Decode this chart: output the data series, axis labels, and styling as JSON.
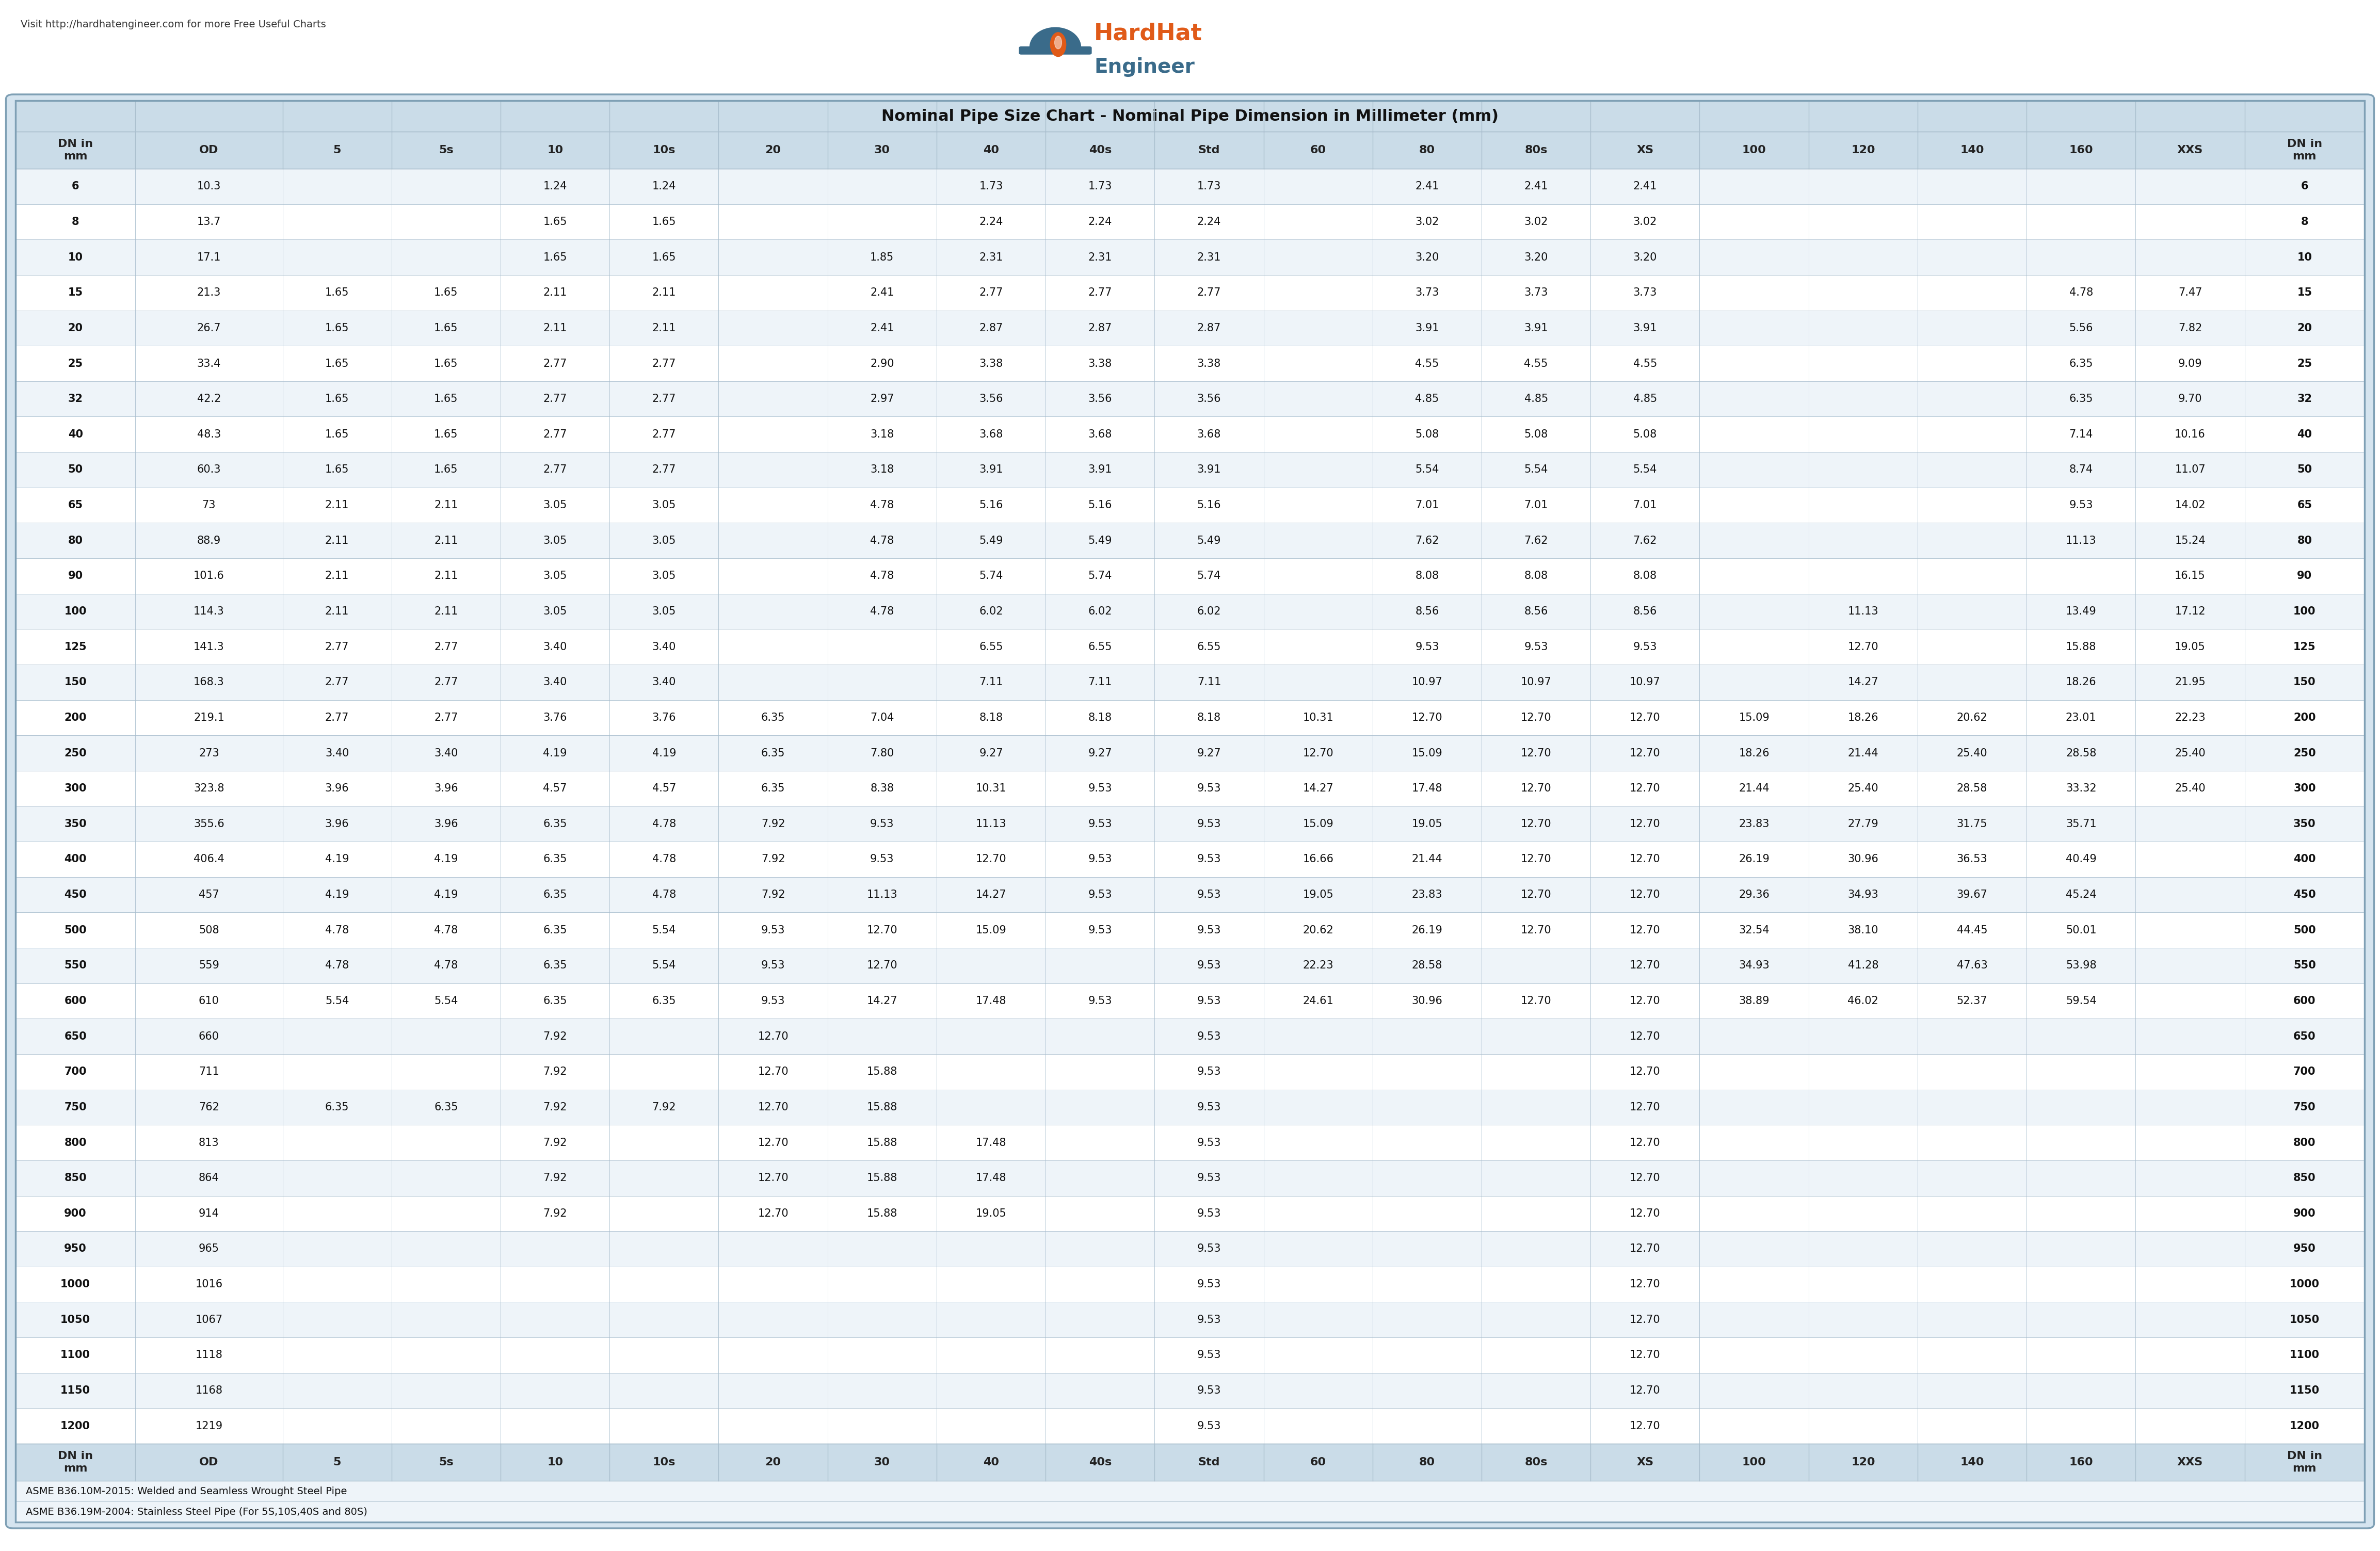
{
  "title": "Nominal Pipe Size Chart - Nominal Pipe Dimension in Millimeter (mm)",
  "url_text": "Visit http://hardhatengineer.com for more Free Useful Charts",
  "footer1": "ASME B36.10M-2015: Welded and Seamless Wrought Steel Pipe",
  "footer2": "ASME B36.19M-2004: Stainless Steel Pipe (For 5S,10S,40S and 80S)",
  "col_headers": [
    "DN in\nmm",
    "OD",
    "5",
    "5s",
    "10",
    "10s",
    "20",
    "30",
    "40",
    "40s",
    "Std",
    "60",
    "80",
    "80s",
    "XS",
    "100",
    "120",
    "140",
    "160",
    "XXS",
    "DN in\nmm"
  ],
  "rows": [
    [
      "6",
      "10.3",
      "",
      "",
      "1.24",
      "1.24",
      "",
      "",
      "1.73",
      "1.73",
      "1.73",
      "",
      "2.41",
      "2.41",
      "2.41",
      "",
      "",
      "",
      "",
      "",
      ""
    ],
    [
      "8",
      "13.7",
      "",
      "",
      "1.65",
      "1.65",
      "",
      "",
      "2.24",
      "2.24",
      "2.24",
      "",
      "3.02",
      "3.02",
      "3.02",
      "",
      "",
      "",
      "",
      "",
      ""
    ],
    [
      "10",
      "17.1",
      "",
      "",
      "1.65",
      "1.65",
      "",
      "1.85",
      "2.31",
      "2.31",
      "2.31",
      "",
      "3.20",
      "3.20",
      "3.20",
      "",
      "",
      "",
      "",
      "",
      ""
    ],
    [
      "15",
      "21.3",
      "1.65",
      "1.65",
      "2.11",
      "2.11",
      "",
      "2.41",
      "2.77",
      "2.77",
      "2.77",
      "",
      "3.73",
      "3.73",
      "3.73",
      "",
      "",
      "",
      "4.78",
      "7.47",
      ""
    ],
    [
      "20",
      "26.7",
      "1.65",
      "1.65",
      "2.11",
      "2.11",
      "",
      "2.41",
      "2.87",
      "2.87",
      "2.87",
      "",
      "3.91",
      "3.91",
      "3.91",
      "",
      "",
      "",
      "5.56",
      "7.82",
      ""
    ],
    [
      "25",
      "33.4",
      "1.65",
      "1.65",
      "2.77",
      "2.77",
      "",
      "2.90",
      "3.38",
      "3.38",
      "3.38",
      "",
      "4.55",
      "4.55",
      "4.55",
      "",
      "",
      "",
      "6.35",
      "9.09",
      ""
    ],
    [
      "32",
      "42.2",
      "1.65",
      "1.65",
      "2.77",
      "2.77",
      "",
      "2.97",
      "3.56",
      "3.56",
      "3.56",
      "",
      "4.85",
      "4.85",
      "4.85",
      "",
      "",
      "",
      "6.35",
      "9.70",
      ""
    ],
    [
      "40",
      "48.3",
      "1.65",
      "1.65",
      "2.77",
      "2.77",
      "",
      "3.18",
      "3.68",
      "3.68",
      "3.68",
      "",
      "5.08",
      "5.08",
      "5.08",
      "",
      "",
      "",
      "7.14",
      "10.16",
      ""
    ],
    [
      "50",
      "60.3",
      "1.65",
      "1.65",
      "2.77",
      "2.77",
      "",
      "3.18",
      "3.91",
      "3.91",
      "3.91",
      "",
      "5.54",
      "5.54",
      "5.54",
      "",
      "",
      "",
      "8.74",
      "11.07",
      ""
    ],
    [
      "65",
      "73",
      "2.11",
      "2.11",
      "3.05",
      "3.05",
      "",
      "4.78",
      "5.16",
      "5.16",
      "5.16",
      "",
      "7.01",
      "7.01",
      "7.01",
      "",
      "",
      "",
      "9.53",
      "14.02",
      ""
    ],
    [
      "80",
      "88.9",
      "2.11",
      "2.11",
      "3.05",
      "3.05",
      "",
      "4.78",
      "5.49",
      "5.49",
      "5.49",
      "",
      "7.62",
      "7.62",
      "7.62",
      "",
      "",
      "",
      "11.13",
      "15.24",
      ""
    ],
    [
      "90",
      "101.6",
      "2.11",
      "2.11",
      "3.05",
      "3.05",
      "",
      "4.78",
      "5.74",
      "5.74",
      "5.74",
      "",
      "8.08",
      "8.08",
      "8.08",
      "",
      "",
      "",
      "",
      "16.15",
      ""
    ],
    [
      "100",
      "114.3",
      "2.11",
      "2.11",
      "3.05",
      "3.05",
      "",
      "4.78",
      "6.02",
      "6.02",
      "6.02",
      "",
      "8.56",
      "8.56",
      "8.56",
      "",
      "11.13",
      "",
      "13.49",
      "17.12",
      ""
    ],
    [
      "125",
      "141.3",
      "2.77",
      "2.77",
      "3.40",
      "3.40",
      "",
      "",
      "6.55",
      "6.55",
      "6.55",
      "",
      "9.53",
      "9.53",
      "9.53",
      "",
      "12.70",
      "",
      "15.88",
      "19.05",
      ""
    ],
    [
      "150",
      "168.3",
      "2.77",
      "2.77",
      "3.40",
      "3.40",
      "",
      "",
      "7.11",
      "7.11",
      "7.11",
      "",
      "10.97",
      "10.97",
      "10.97",
      "",
      "14.27",
      "",
      "18.26",
      "21.95",
      ""
    ],
    [
      "200",
      "219.1",
      "2.77",
      "2.77",
      "3.76",
      "3.76",
      "6.35",
      "7.04",
      "8.18",
      "8.18",
      "8.18",
      "10.31",
      "12.70",
      "12.70",
      "12.70",
      "15.09",
      "18.26",
      "20.62",
      "23.01",
      "22.23",
      ""
    ],
    [
      "250",
      "273",
      "3.40",
      "3.40",
      "4.19",
      "4.19",
      "6.35",
      "7.80",
      "9.27",
      "9.27",
      "9.27",
      "12.70",
      "15.09",
      "12.70",
      "12.70",
      "18.26",
      "21.44",
      "25.40",
      "28.58",
      "25.40",
      ""
    ],
    [
      "300",
      "323.8",
      "3.96",
      "3.96",
      "4.57",
      "4.57",
      "6.35",
      "8.38",
      "10.31",
      "9.53",
      "9.53",
      "14.27",
      "17.48",
      "12.70",
      "12.70",
      "21.44",
      "25.40",
      "28.58",
      "33.32",
      "25.40",
      ""
    ],
    [
      "350",
      "355.6",
      "3.96",
      "3.96",
      "6.35",
      "4.78",
      "7.92",
      "9.53",
      "11.13",
      "9.53",
      "9.53",
      "15.09",
      "19.05",
      "12.70",
      "12.70",
      "23.83",
      "27.79",
      "31.75",
      "35.71",
      "",
      ""
    ],
    [
      "400",
      "406.4",
      "4.19",
      "4.19",
      "6.35",
      "4.78",
      "7.92",
      "9.53",
      "12.70",
      "9.53",
      "9.53",
      "16.66",
      "21.44",
      "12.70",
      "12.70",
      "26.19",
      "30.96",
      "36.53",
      "40.49",
      "",
      ""
    ],
    [
      "450",
      "457",
      "4.19",
      "4.19",
      "6.35",
      "4.78",
      "7.92",
      "11.13",
      "14.27",
      "9.53",
      "9.53",
      "19.05",
      "23.83",
      "12.70",
      "12.70",
      "29.36",
      "34.93",
      "39.67",
      "45.24",
      "",
      ""
    ],
    [
      "500",
      "508",
      "4.78",
      "4.78",
      "6.35",
      "5.54",
      "9.53",
      "12.70",
      "15.09",
      "9.53",
      "9.53",
      "20.62",
      "26.19",
      "12.70",
      "12.70",
      "32.54",
      "38.10",
      "44.45",
      "50.01",
      "",
      ""
    ],
    [
      "550",
      "559",
      "4.78",
      "4.78",
      "6.35",
      "5.54",
      "9.53",
      "12.70",
      "",
      "",
      "9.53",
      "22.23",
      "28.58",
      "",
      "12.70",
      "34.93",
      "41.28",
      "47.63",
      "53.98",
      "",
      ""
    ],
    [
      "600",
      "610",
      "5.54",
      "5.54",
      "6.35",
      "6.35",
      "9.53",
      "14.27",
      "17.48",
      "9.53",
      "9.53",
      "24.61",
      "30.96",
      "12.70",
      "12.70",
      "38.89",
      "46.02",
      "52.37",
      "59.54",
      "",
      ""
    ],
    [
      "650",
      "660",
      "",
      "",
      "7.92",
      "",
      "12.70",
      "",
      "",
      "",
      "9.53",
      "",
      "",
      "",
      "12.70",
      "",
      "",
      "",
      "",
      "",
      ""
    ],
    [
      "700",
      "711",
      "",
      "",
      "7.92",
      "",
      "12.70",
      "15.88",
      "",
      "",
      "9.53",
      "",
      "",
      "",
      "12.70",
      "",
      "",
      "",
      "",
      "",
      ""
    ],
    [
      "750",
      "762",
      "6.35",
      "6.35",
      "7.92",
      "7.92",
      "12.70",
      "15.88",
      "",
      "",
      "9.53",
      "",
      "",
      "",
      "12.70",
      "",
      "",
      "",
      "",
      "",
      ""
    ],
    [
      "800",
      "813",
      "",
      "",
      "7.92",
      "",
      "12.70",
      "15.88",
      "17.48",
      "",
      "9.53",
      "",
      "",
      "",
      "12.70",
      "",
      "",
      "",
      "",
      "",
      ""
    ],
    [
      "850",
      "864",
      "",
      "",
      "7.92",
      "",
      "12.70",
      "15.88",
      "17.48",
      "",
      "9.53",
      "",
      "",
      "",
      "12.70",
      "",
      "",
      "",
      "",
      "",
      ""
    ],
    [
      "900",
      "914",
      "",
      "",
      "7.92",
      "",
      "12.70",
      "15.88",
      "19.05",
      "",
      "9.53",
      "",
      "",
      "",
      "12.70",
      "",
      "",
      "",
      "",
      "",
      ""
    ],
    [
      "950",
      "965",
      "",
      "",
      "",
      "",
      "",
      "",
      "",
      "",
      "9.53",
      "",
      "",
      "",
      "12.70",
      "",
      "",
      "",
      "",
      "",
      ""
    ],
    [
      "1000",
      "1016",
      "",
      "",
      "",
      "",
      "",
      "",
      "",
      "",
      "9.53",
      "",
      "",
      "",
      "12.70",
      "",
      "",
      "",
      "",
      "",
      ""
    ],
    [
      "1050",
      "1067",
      "",
      "",
      "",
      "",
      "",
      "",
      "",
      "",
      "9.53",
      "",
      "",
      "",
      "12.70",
      "",
      "",
      "",
      "",
      "",
      ""
    ],
    [
      "1100",
      "1118",
      "",
      "",
      "",
      "",
      "",
      "",
      "",
      "",
      "9.53",
      "",
      "",
      "",
      "12.70",
      "",
      "",
      "",
      "",
      "",
      ""
    ],
    [
      "1150",
      "1168",
      "",
      "",
      "",
      "",
      "",
      "",
      "",
      "",
      "9.53",
      "",
      "",
      "",
      "12.70",
      "",
      "",
      "",
      "",
      "",
      ""
    ],
    [
      "1200",
      "1219",
      "",
      "",
      "",
      "",
      "",
      "",
      "",
      "",
      "9.53",
      "",
      "",
      "",
      "12.70",
      "",
      "",
      "",
      "",
      "",
      ""
    ]
  ],
  "header_bg": "#cadce8",
  "header_text": "#222222",
  "title_bg": "#cadce8",
  "row_bg_even": "#eef4f9",
  "row_bg_odd": "#ffffff",
  "border_color": "#aabfce",
  "outer_border": "#7fa0b5",
  "table_outer_bg": "#d5e4ef",
  "hat_color": "#3a6b8a",
  "fire_color": "#e05a18",
  "text_darkblue": "#3a6b8a",
  "text_orange": "#e05a18",
  "col_widths_rel": [
    1.1,
    1.35,
    1.0,
    1.0,
    1.0,
    1.0,
    1.0,
    1.0,
    1.0,
    1.0,
    1.0,
    1.0,
    1.0,
    1.0,
    1.0,
    1.0,
    1.0,
    1.0,
    1.0,
    1.0,
    1.1
  ],
  "fig_width": 46.12,
  "fig_height": 30.06,
  "title_fontsize": 22,
  "header_fontsize": 16,
  "cell_fontsize": 15,
  "url_fontsize": 14,
  "footer_fontsize": 14,
  "logo_hardhat_fontsize": 32,
  "logo_engineer_fontsize": 28
}
